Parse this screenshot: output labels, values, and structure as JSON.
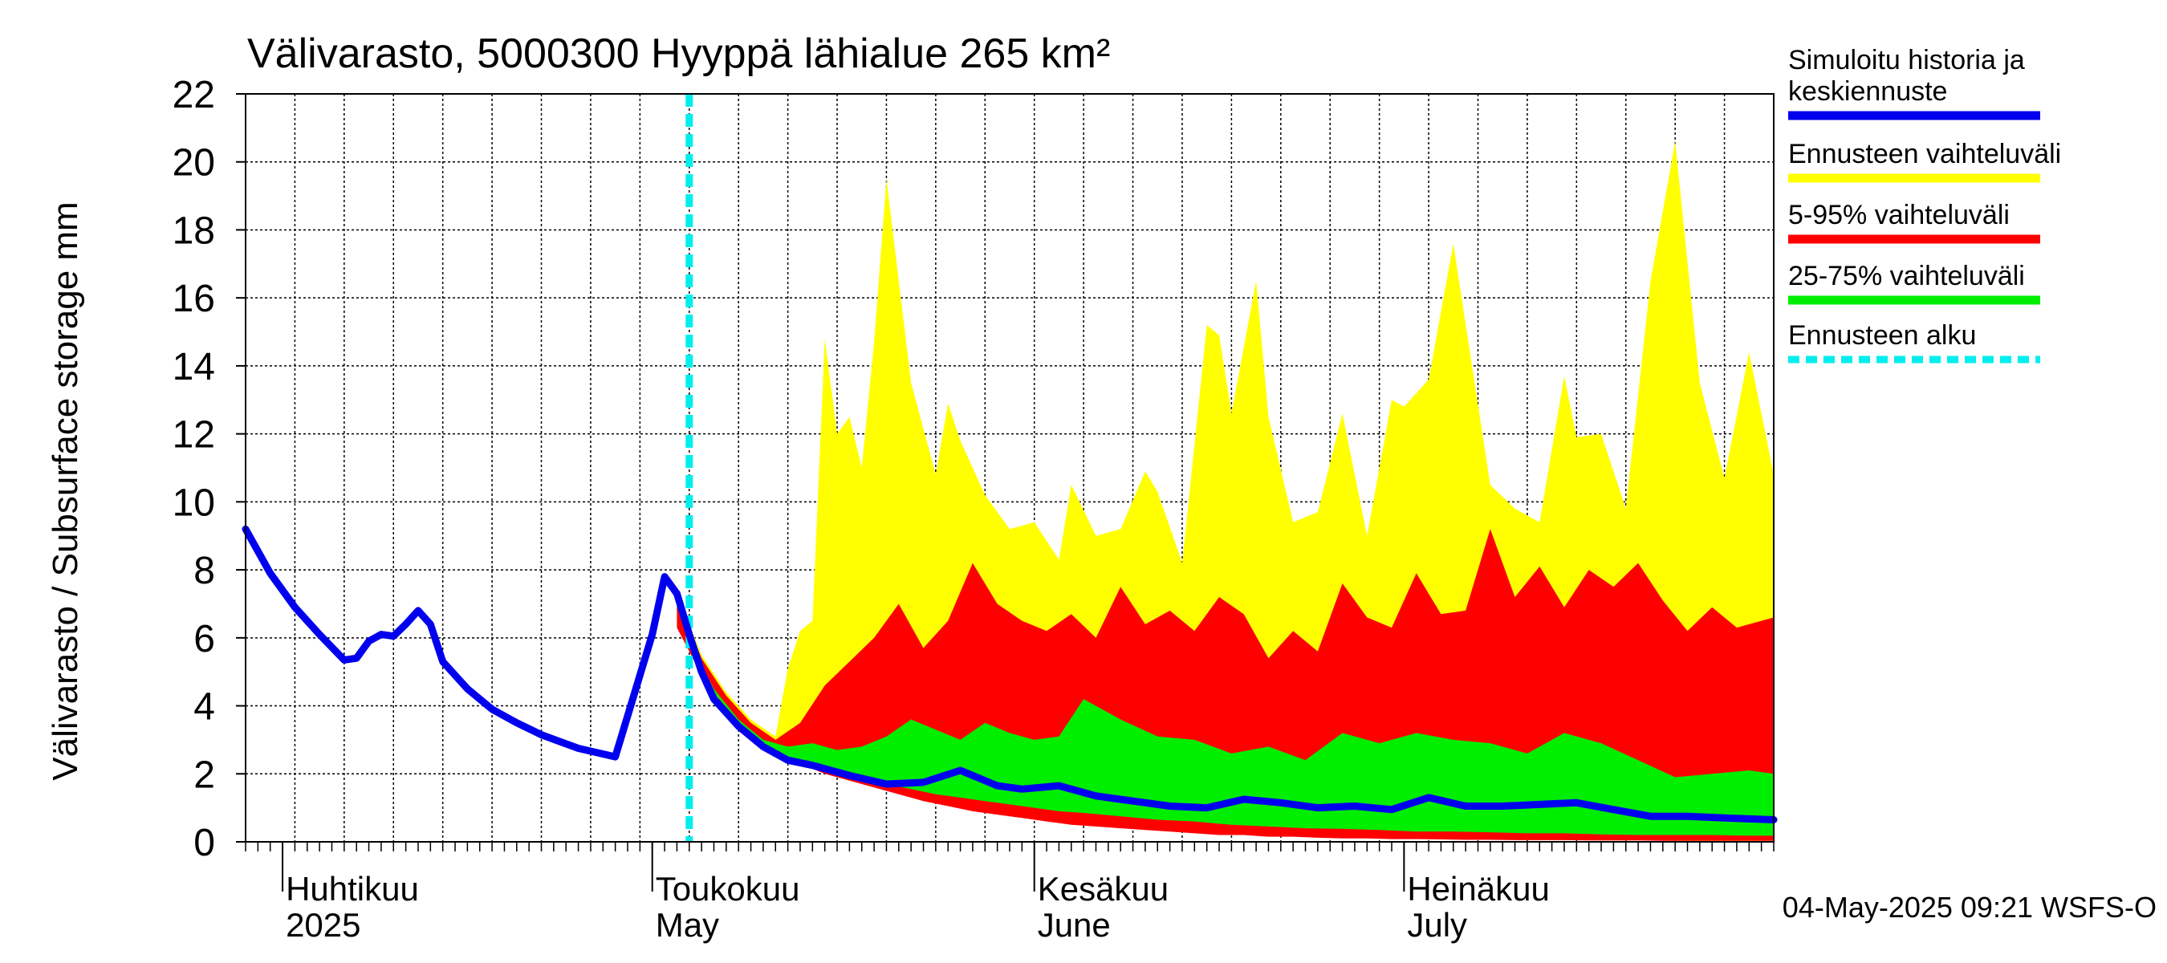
{
  "chart_data": {
    "type": "area",
    "title": "Välivarasto, 5000300 Hyyppä lähialue 265 km²",
    "ylabel": "Välivarasto / Subsurface storage  mm",
    "xlabel": "",
    "ylim": [
      0,
      22
    ],
    "yticks": [
      "0",
      "2",
      "4",
      "6",
      "8",
      "10",
      "12",
      "14",
      "16",
      "18",
      "20",
      "22"
    ],
    "xlim": [
      "2025-03-29",
      "2025-07-31"
    ],
    "grid": true,
    "legend_position": "right",
    "month_labels": [
      {
        "date": "2025-04-01",
        "fi": "Huhtikuu",
        "en": "2025"
      },
      {
        "date": "2025-05-01",
        "fi": "Toukokuu",
        "en": "May"
      },
      {
        "date": "2025-06-01",
        "fi": "Kesäkuu",
        "en": "June"
      },
      {
        "date": "2025-07-01",
        "fi": "Heinäkuu",
        "en": "July"
      }
    ],
    "forecast_start": "2025-05-04",
    "series": [
      {
        "name": "Simuloitu historia ja keskiennuste",
        "kind": "line",
        "color": "#0000ee",
        "x": [
          "2025-03-29",
          "2025-03-31",
          "2025-04-02",
          "2025-04-04",
          "2025-04-06",
          "2025-04-07",
          "2025-04-08",
          "2025-04-09",
          "2025-04-10",
          "2025-04-11",
          "2025-04-12",
          "2025-04-13",
          "2025-04-14",
          "2025-04-16",
          "2025-04-18",
          "2025-04-20",
          "2025-04-22",
          "2025-04-25",
          "2025-04-28",
          "2025-05-01",
          "2025-05-02",
          "2025-05-03",
          "2025-05-04",
          "2025-05-05",
          "2025-05-06",
          "2025-05-08",
          "2025-05-10",
          "2025-05-12",
          "2025-05-14",
          "2025-05-17",
          "2025-05-20",
          "2025-05-23",
          "2025-05-26",
          "2025-05-29",
          "2025-05-31",
          "2025-06-03",
          "2025-06-06",
          "2025-06-09",
          "2025-06-12",
          "2025-06-15",
          "2025-06-18",
          "2025-06-21",
          "2025-06-24",
          "2025-06-27",
          "2025-06-30",
          "2025-07-03",
          "2025-07-06",
          "2025-07-09",
          "2025-07-12",
          "2025-07-15",
          "2025-07-18",
          "2025-07-21",
          "2025-07-24",
          "2025-07-27",
          "2025-07-31"
        ],
        "y": [
          9.2,
          7.9,
          6.9,
          6.1,
          5.35,
          5.4,
          5.9,
          6.1,
          6.05,
          6.4,
          6.8,
          6.4,
          5.3,
          4.5,
          3.9,
          3.5,
          3.15,
          2.75,
          2.5,
          6.1,
          7.8,
          7.3,
          6.1,
          5.0,
          4.2,
          3.4,
          2.8,
          2.4,
          2.25,
          1.95,
          1.7,
          1.75,
          2.1,
          1.65,
          1.55,
          1.65,
          1.35,
          1.2,
          1.05,
          1.0,
          1.25,
          1.15,
          1.0,
          1.05,
          0.95,
          1.3,
          1.05,
          1.05,
          1.1,
          1.15,
          0.95,
          0.75,
          0.75,
          0.7,
          0.65
        ]
      },
      {
        "name": "Ennusteen vaihteluväli",
        "kind": "band",
        "color": "#ffff00",
        "x": [
          "2025-05-03",
          "2025-05-05",
          "2025-05-07",
          "2025-05-09",
          "2025-05-11",
          "2025-05-12",
          "2025-05-13",
          "2025-05-14",
          "2025-05-15",
          "2025-05-16",
          "2025-05-17",
          "2025-05-18",
          "2025-05-19",
          "2025-05-20",
          "2025-05-22",
          "2025-05-24",
          "2025-05-25",
          "2025-05-26",
          "2025-05-28",
          "2025-05-30",
          "2025-06-01",
          "2025-06-03",
          "2025-06-04",
          "2025-06-06",
          "2025-06-08",
          "2025-06-10",
          "2025-06-11",
          "2025-06-13",
          "2025-06-15",
          "2025-06-16",
          "2025-06-17",
          "2025-06-19",
          "2025-06-20",
          "2025-06-22",
          "2025-06-24",
          "2025-06-26",
          "2025-06-28",
          "2025-06-30",
          "2025-07-01",
          "2025-07-03",
          "2025-07-05",
          "2025-07-08",
          "2025-07-10",
          "2025-07-12",
          "2025-07-14",
          "2025-07-15",
          "2025-07-17",
          "2025-07-19",
          "2025-07-21",
          "2025-07-23",
          "2025-07-25",
          "2025-07-27",
          "2025-07-29",
          "2025-07-31"
        ],
        "y_low": [
          6.5,
          5.0,
          4.0,
          3.3,
          2.7,
          2.4,
          2.3,
          2.2,
          2.1,
          2.0,
          1.9,
          1.8,
          1.7,
          1.6,
          1.5,
          1.4,
          1.3,
          1.2,
          1.0,
          0.9,
          0.8,
          0.75,
          0.7,
          0.6,
          0.55,
          0.5,
          0.45,
          0.4,
          0.35,
          0.3,
          0.3,
          0.25,
          0.2,
          0.2,
          0.15,
          0.15,
          0.1,
          0.1,
          0.1,
          0.08,
          0.08,
          0.06,
          0.06,
          0.05,
          0.05,
          0.05,
          0.04,
          0.04,
          0.04,
          0.03,
          0.03,
          0.03,
          0.03,
          0.03
        ],
        "y_high": [
          7.3,
          5.5,
          4.4,
          3.6,
          3.1,
          5.1,
          6.2,
          6.5,
          14.8,
          12.0,
          12.5,
          11.0,
          14.7,
          19.5,
          13.5,
          10.8,
          12.9,
          11.8,
          10.2,
          9.2,
          9.4,
          8.3,
          10.5,
          9.0,
          9.2,
          10.9,
          10.3,
          8.2,
          15.2,
          14.9,
          12.6,
          16.5,
          12.5,
          9.4,
          9.7,
          12.6,
          9.0,
          13.0,
          12.8,
          13.6,
          17.6,
          10.5,
          9.8,
          9.4,
          13.7,
          11.9,
          12.0,
          9.8,
          16.5,
          20.6,
          13.5,
          10.7,
          14.4,
          10.8
        ]
      },
      {
        "name": "5-95% vaihteluväli",
        "kind": "band",
        "color": "#ff0000",
        "x": [
          "2025-05-03",
          "2025-05-05",
          "2025-05-07",
          "2025-05-09",
          "2025-05-11",
          "2025-05-13",
          "2025-05-15",
          "2025-05-17",
          "2025-05-19",
          "2025-05-21",
          "2025-05-23",
          "2025-05-25",
          "2025-05-27",
          "2025-05-29",
          "2025-05-31",
          "2025-06-02",
          "2025-06-04",
          "2025-06-06",
          "2025-06-08",
          "2025-06-10",
          "2025-06-12",
          "2025-06-14",
          "2025-06-16",
          "2025-06-18",
          "2025-06-20",
          "2025-06-22",
          "2025-06-24",
          "2025-06-26",
          "2025-06-28",
          "2025-06-30",
          "2025-07-02",
          "2025-07-04",
          "2025-07-06",
          "2025-07-08",
          "2025-07-10",
          "2025-07-12",
          "2025-07-14",
          "2025-07-16",
          "2025-07-18",
          "2025-07-20",
          "2025-07-22",
          "2025-07-24",
          "2025-07-26",
          "2025-07-28",
          "2025-07-31"
        ],
        "y_low": [
          6.3,
          4.9,
          3.9,
          3.2,
          2.6,
          2.3,
          2.0,
          1.8,
          1.6,
          1.4,
          1.2,
          1.05,
          0.9,
          0.8,
          0.7,
          0.6,
          0.5,
          0.45,
          0.4,
          0.35,
          0.3,
          0.25,
          0.2,
          0.2,
          0.15,
          0.15,
          0.12,
          0.1,
          0.1,
          0.08,
          0.08,
          0.07,
          0.06,
          0.06,
          0.05,
          0.05,
          0.05,
          0.04,
          0.04,
          0.04,
          0.03,
          0.03,
          0.03,
          0.03,
          0.03
        ],
        "y_high": [
          7.2,
          5.4,
          4.3,
          3.5,
          3.0,
          3.5,
          4.6,
          5.3,
          6.0,
          7.0,
          5.7,
          6.5,
          8.2,
          7.0,
          6.5,
          6.2,
          6.7,
          6.0,
          7.5,
          6.4,
          6.8,
          6.2,
          7.2,
          6.7,
          5.4,
          6.2,
          5.6,
          7.6,
          6.6,
          6.3,
          7.9,
          6.7,
          6.8,
          9.2,
          7.2,
          8.1,
          6.9,
          8.0,
          7.5,
          8.2,
          7.1,
          6.2,
          6.9,
          6.3,
          6.6
        ]
      },
      {
        "name": "25-75% vaihteluväli",
        "kind": "band",
        "color": "#00ee00",
        "x": [
          "2025-05-04",
          "2025-05-06",
          "2025-05-08",
          "2025-05-10",
          "2025-05-12",
          "2025-05-14",
          "2025-05-16",
          "2025-05-18",
          "2025-05-20",
          "2025-05-22",
          "2025-05-24",
          "2025-05-26",
          "2025-05-28",
          "2025-05-30",
          "2025-06-01",
          "2025-06-03",
          "2025-06-05",
          "2025-06-08",
          "2025-06-11",
          "2025-06-14",
          "2025-06-17",
          "2025-06-20",
          "2025-06-23",
          "2025-06-26",
          "2025-06-29",
          "2025-07-02",
          "2025-07-05",
          "2025-07-08",
          "2025-07-11",
          "2025-07-14",
          "2025-07-17",
          "2025-07-20",
          "2025-07-23",
          "2025-07-26",
          "2025-07-29",
          "2025-07-31"
        ],
        "y_low": [
          5.8,
          4.4,
          3.5,
          2.9,
          2.45,
          2.2,
          2.0,
          1.85,
          1.7,
          1.55,
          1.4,
          1.3,
          1.2,
          1.1,
          1.0,
          0.9,
          0.85,
          0.75,
          0.65,
          0.6,
          0.5,
          0.45,
          0.4,
          0.38,
          0.35,
          0.3,
          0.3,
          0.28,
          0.25,
          0.25,
          0.22,
          0.2,
          0.2,
          0.2,
          0.18,
          0.18
        ],
        "y_high": [
          5.9,
          4.5,
          3.6,
          3.0,
          2.8,
          2.9,
          2.7,
          2.8,
          3.1,
          3.6,
          3.3,
          3.0,
          3.5,
          3.2,
          3.0,
          3.1,
          4.2,
          3.6,
          3.1,
          3.0,
          2.6,
          2.8,
          2.4,
          3.2,
          2.9,
          3.2,
          3.0,
          2.9,
          2.6,
          3.2,
          2.9,
          2.4,
          1.9,
          2.0,
          2.1,
          2.0
        ]
      }
    ],
    "legend": [
      {
        "label": "Simuloitu historia ja\nkeskiennuste",
        "line1": "Simuloitu historia ja",
        "line2": "keskiennuste",
        "color": "#0000ee",
        "style": "solid"
      },
      {
        "label": "Ennusteen vaihteluväli",
        "color": "#ffff00",
        "style": "solid"
      },
      {
        "label": "5-95% vaihteluväli",
        "color": "#ff0000",
        "style": "solid"
      },
      {
        "label": "25-75% vaihteluväli",
        "color": "#00ee00",
        "style": "solid"
      },
      {
        "label": "Ennusteen alku",
        "color": "#00eeee",
        "style": "dashed"
      }
    ],
    "footer": "04-May-2025 09:21 WSFS-O"
  }
}
